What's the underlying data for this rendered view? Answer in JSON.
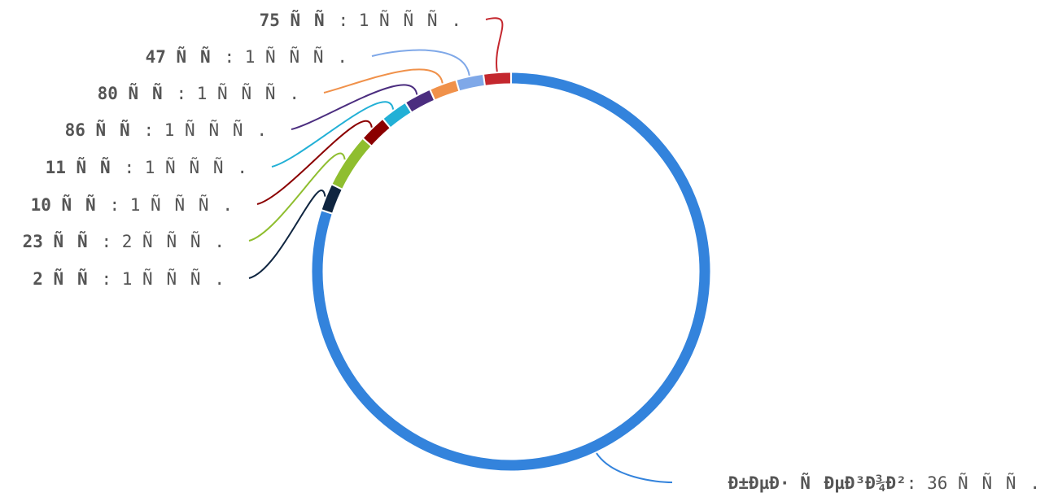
{
  "chart_data": {
    "type": "pie",
    "style": "donut",
    "slices": [
      {
        "name": "75 ÑÑ",
        "value": 1,
        "value_text": "1 ÑÑÑ.",
        "color": "#c4272e"
      },
      {
        "name": "47 ÑÑ",
        "value": 1,
        "value_text": "1 ÑÑÑ.",
        "color": "#7fa8e8"
      },
      {
        "name": "80 ÑÑ",
        "value": 1,
        "value_text": "1 ÑÑÑ.",
        "color": "#f0914a"
      },
      {
        "name": "86 ÑÑ",
        "value": 1,
        "value_text": "1 ÑÑÑ.",
        "color": "#4b2d7f"
      },
      {
        "name": "11 ÑÑ",
        "value": 1,
        "value_text": "1 ÑÑÑ.",
        "color": "#22b0d6"
      },
      {
        "name": "10 ÑÑ",
        "value": 1,
        "value_text": "1 ÑÑÑ.",
        "color": "#8b0000"
      },
      {
        "name": "23 ÑÑ",
        "value": 2,
        "value_text": "2 ÑÑÑ.",
        "color": "#8fbe2f"
      },
      {
        "name": "2 ÑÑ",
        "value": 1,
        "value_text": "1 ÑÑÑ.",
        "color": "#0f2540"
      },
      {
        "name": "Ð±ÐµÐ· ÑÐµÐ³Ð¾Ð²",
        "value": 36,
        "value_text": "36 ÑÑÑ.",
        "color": "#3383dc"
      }
    ]
  }
}
